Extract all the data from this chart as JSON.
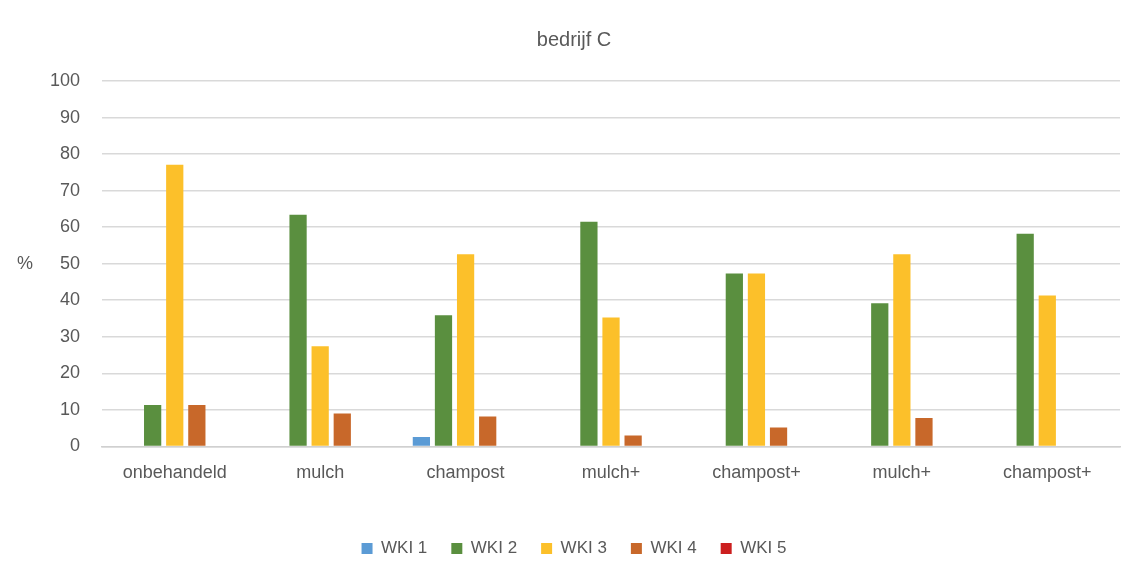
{
  "chart_data": {
    "type": "bar",
    "title": "bedrijf C",
    "ylabel": "%",
    "categories": [
      "onbehandeld",
      "mulch",
      "champost",
      "mulch+",
      "champost+",
      "mulch+",
      "champost+"
    ],
    "series": [
      {
        "name": "WKI 1",
        "color": "#5b9bd5",
        "values": [
          0,
          0,
          2.6,
          0,
          0,
          0,
          0
        ]
      },
      {
        "name": "WKI 2",
        "color": "#5a8f3f",
        "values": [
          11.3,
          63.4,
          35.9,
          61.5,
          47.3,
          39.2,
          58.2
        ]
      },
      {
        "name": "WKI 3",
        "color": "#fcc02a",
        "values": [
          77.1,
          27.4,
          52.6,
          35.3,
          47.3,
          52.6,
          41.3
        ]
      },
      {
        "name": "WKI 4",
        "color": "#c8682a",
        "values": [
          11.3,
          9.0,
          8.2,
          3.0,
          5.2,
          7.8,
          0
        ]
      },
      {
        "name": "WKI 5",
        "color": "#cc1f1f",
        "values": [
          0,
          0,
          0,
          0,
          0,
          0,
          0
        ]
      }
    ],
    "ylim": [
      0,
      100
    ],
    "yticks": [
      0,
      10,
      20,
      30,
      40,
      50,
      60,
      70,
      80,
      90,
      100
    ],
    "grid": "y",
    "legend": "bottom"
  }
}
